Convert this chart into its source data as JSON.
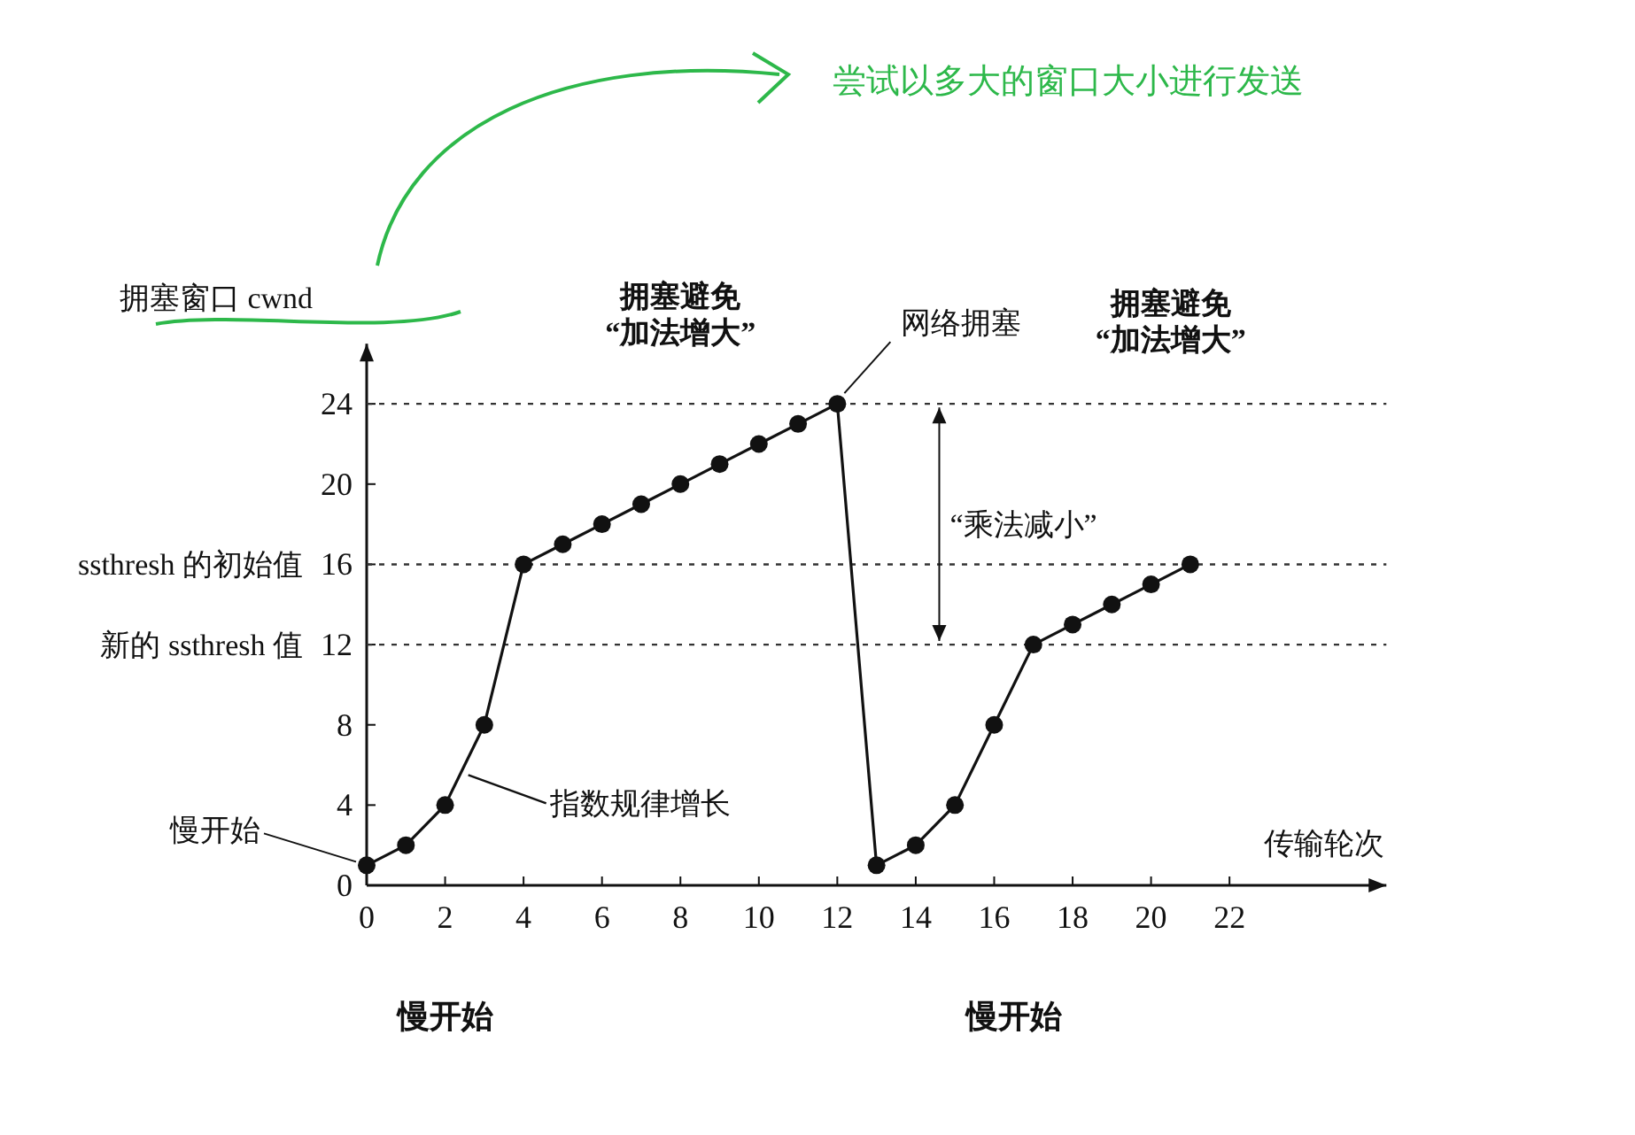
{
  "chart_data": {
    "type": "line",
    "xlabel": "传输轮次",
    "ylabel": "拥塞窗口 cwnd",
    "xlim": [
      0,
      26
    ],
    "ylim": [
      0,
      27
    ],
    "xticks": [
      0,
      2,
      4,
      6,
      8,
      10,
      12,
      14,
      16,
      18,
      20,
      22
    ],
    "yticks": [
      0,
      4,
      8,
      12,
      16,
      20,
      24
    ],
    "grid": false,
    "marker": "circle",
    "line_style": "solid",
    "series": [
      {
        "color": "#111111",
        "x": [
          0,
          1,
          2,
          3,
          4,
          5,
          6,
          7,
          8,
          9,
          10,
          11,
          12,
          13,
          14,
          15,
          16,
          17,
          18,
          19,
          20,
          21
        ],
        "values": [
          1,
          2,
          4,
          8,
          16,
          17,
          18,
          19,
          20,
          21,
          22,
          23,
          24,
          1,
          2,
          4,
          8,
          12,
          13,
          14,
          15,
          16
        ]
      }
    ],
    "ref_lines": [
      {
        "axis": "y",
        "value": 24,
        "label": null,
        "line_style": "dotted",
        "color": "#333333"
      },
      {
        "axis": "y",
        "value": 16,
        "label": "ssthresh 的初始值",
        "line_style": "dotted",
        "color": "#333333"
      },
      {
        "axis": "y",
        "value": 12,
        "label": "新的 ssthresh 值",
        "line_style": "dotted",
        "color": "#333333"
      }
    ],
    "annotations": [
      "尝试以多大的窗口大小进行发送",
      {
        "text": "慢开始",
        "x": 0,
        "y": 1
      },
      {
        "text": "指数规律增长",
        "x": 2.5,
        "y": 5.5
      },
      {
        "text": "拥塞避免\n“加法增大”",
        "x": 8,
        "y": 24
      },
      {
        "text": "网络拥塞",
        "x": 12,
        "y": 24
      },
      "“乘法减小”",
      "拥塞避免\n“加法增大”",
      "慢开始",
      "慢开始"
    ]
  }
}
